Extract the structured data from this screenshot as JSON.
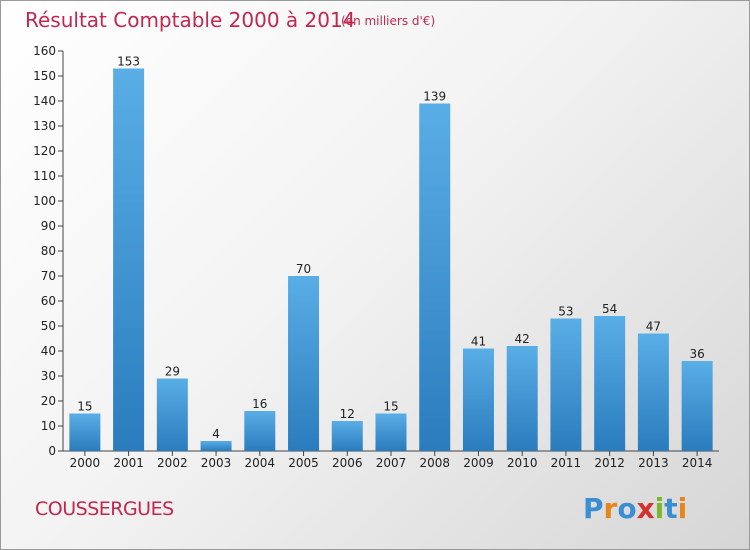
{
  "header": {
    "title": "Résultat Comptable 2000 à 2014",
    "subtitle": "(en milliers d'€)"
  },
  "footer": {
    "commune": "COUSSERGUES",
    "logo_text": "Proxiti"
  },
  "colors": {
    "title": "#c2274f",
    "bar_top": "#5aaee6",
    "bar_bottom": "#2a7cbd",
    "logo_letters": [
      "#3a8ed2",
      "#e8851a",
      "#3a8ed2",
      "#d6322c",
      "#79b82b",
      "#3a8ed2",
      "#e8851a"
    ]
  },
  "chart_data": {
    "type": "bar",
    "categories": [
      "2000",
      "2001",
      "2002",
      "2003",
      "2004",
      "2005",
      "2006",
      "2007",
      "2008",
      "2009",
      "2010",
      "2011",
      "2012",
      "2013",
      "2014"
    ],
    "values": [
      15,
      153,
      29,
      4,
      16,
      70,
      12,
      15,
      139,
      41,
      42,
      53,
      54,
      47,
      36
    ],
    "title": "Résultat Comptable 2000 à 2014",
    "subtitle": "(en milliers d'€)",
    "xlabel": "",
    "ylabel": "",
    "ylim": [
      0,
      160
    ],
    "yticks": [
      0,
      10,
      20,
      30,
      40,
      50,
      60,
      70,
      80,
      90,
      100,
      110,
      120,
      130,
      140,
      150,
      160
    ],
    "grid": false,
    "legend": "none"
  }
}
